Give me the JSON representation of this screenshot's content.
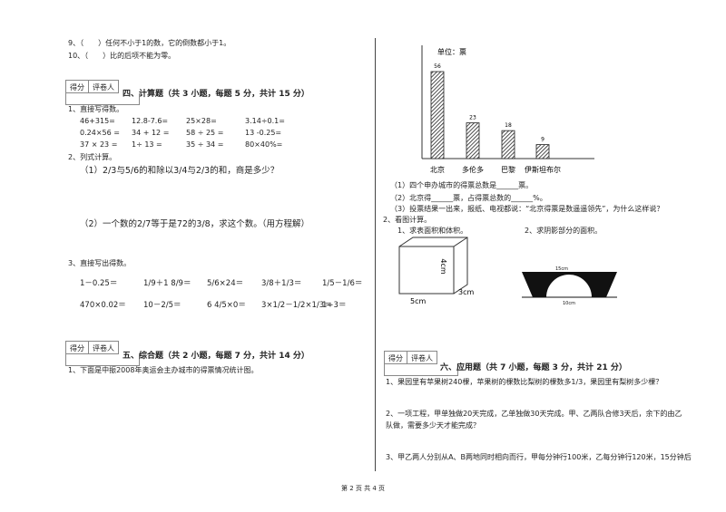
{
  "left": {
    "q9": "9、（　　）任何不小于1的数，它的倒数都小于1。",
    "q10": "10、（　　）比的后项不能为零。",
    "section4": {
      "score_box": [
        "得分",
        "评卷人"
      ],
      "title": "四、计算题（共 3 小题，每题 5 分，共计 15 分）",
      "q1": "1、直接写得数。",
      "q1_rows": [
        [
          "46+315=",
          "12.8-7.6=",
          "25×28=",
          "3.14÷0.1="
        ],
        [
          "0.24×56 =",
          "34 + 12 =",
          "58 ÷ 25 =",
          "13 -0.25="
        ],
        [
          "37 × 23 =",
          "1÷ 13 =",
          "35 ÷ 34 =",
          "80×40%="
        ]
      ],
      "q2": "2、列式计算。",
      "q2_1": "（1）2/3与5/6的和除以3/4与2/3的和，商是多少？",
      "q2_2": "（2）一个数的2/7等于是72的3/8，求这个数。（用方程解）",
      "q3": "3、直接写出得数。",
      "q3_rows": [
        [
          "1－0.25＝",
          "1/9＋1 8/9＝",
          "5/6×24＝",
          "3/8＋1/3＝",
          "1/5－1/6＝"
        ],
        [
          "470×0.02＝",
          "10－2/5＝",
          "6 4/5×0＝",
          "3×1/2－1/2×1/3＝",
          "1÷3＝"
        ]
      ]
    },
    "section5": {
      "score_box": [
        "得分",
        "评卷人"
      ],
      "title": "五、综合题（共 2 小题，每题 7 分，共计 14 分）",
      "q1": "1、下面是中振2008年奥运会主办城市的得票情况统计图。"
    }
  },
  "right": {
    "chart": {
      "type": "bar",
      "unit": "单位：票",
      "categories": [
        "北京",
        "多伦多",
        "巴黎",
        "伊斯坦布尔"
      ],
      "values": [
        56,
        23,
        18,
        9
      ],
      "ylim": [
        0,
        70
      ]
    },
    "chart_q1": "（1）四个申办城市的得票总数是______票。",
    "chart_q2": "（2）北京得______票，占得票总数的______%。",
    "chart_q3": "（3）投票结果一出来，报纸、电视都说：“北京得票是数遥遥领先”，为什么这样说？",
    "q2": "2、看图计算。",
    "q2_1": "1、求表面积和体积。",
    "q2_2": "2、求阴影部分的面积。",
    "box_labels": [
      "4cm",
      "3cm",
      "5cm"
    ],
    "arch_labels": [
      "15cm",
      "10cm"
    ],
    "section6": {
      "score_box": [
        "得分",
        "评卷人"
      ],
      "title": "六、应用题（共 7 小题，每题 3 分，共计 21 分）",
      "q1": "1、果园里有苹果树240棵，苹果树的棵数比梨树的棵数多1/3，果园里有梨树多少棵？",
      "q2_line1": "2、一项工程，甲单独做20天完成，乙单独做30天完成。甲、乙两队合修3天后，余下的由乙",
      "q2_line2": "队做，需要多少天才能完成？",
      "q3": "3、甲乙两人分别从A、B两地同时相向而行，甲每分钟行100米，乙每分钟行120米，15分钟后"
    }
  },
  "footer": "第 2 页 共 4 页"
}
